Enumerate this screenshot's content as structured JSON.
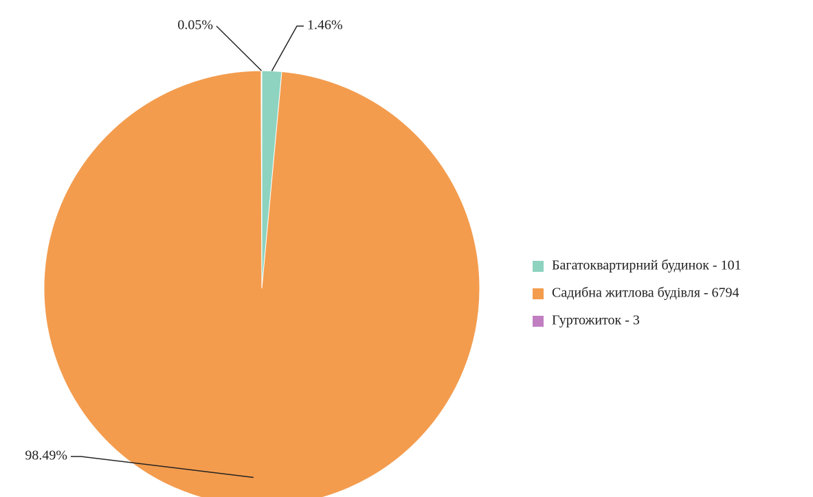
{
  "chart_data": {
    "type": "pie",
    "categories": [
      "Багатоквартирний будинок - 101",
      "Садибна житлова будівля - 6794",
      "Гуртожиток - 3"
    ],
    "values": [
      1.46,
      98.49,
      0.05
    ],
    "value_labels": [
      "1.46%",
      "98.49%",
      "0.05%"
    ],
    "colors": [
      "#8dd3c0",
      "#f39c4e",
      "#c17fc1"
    ],
    "legend": "right"
  }
}
